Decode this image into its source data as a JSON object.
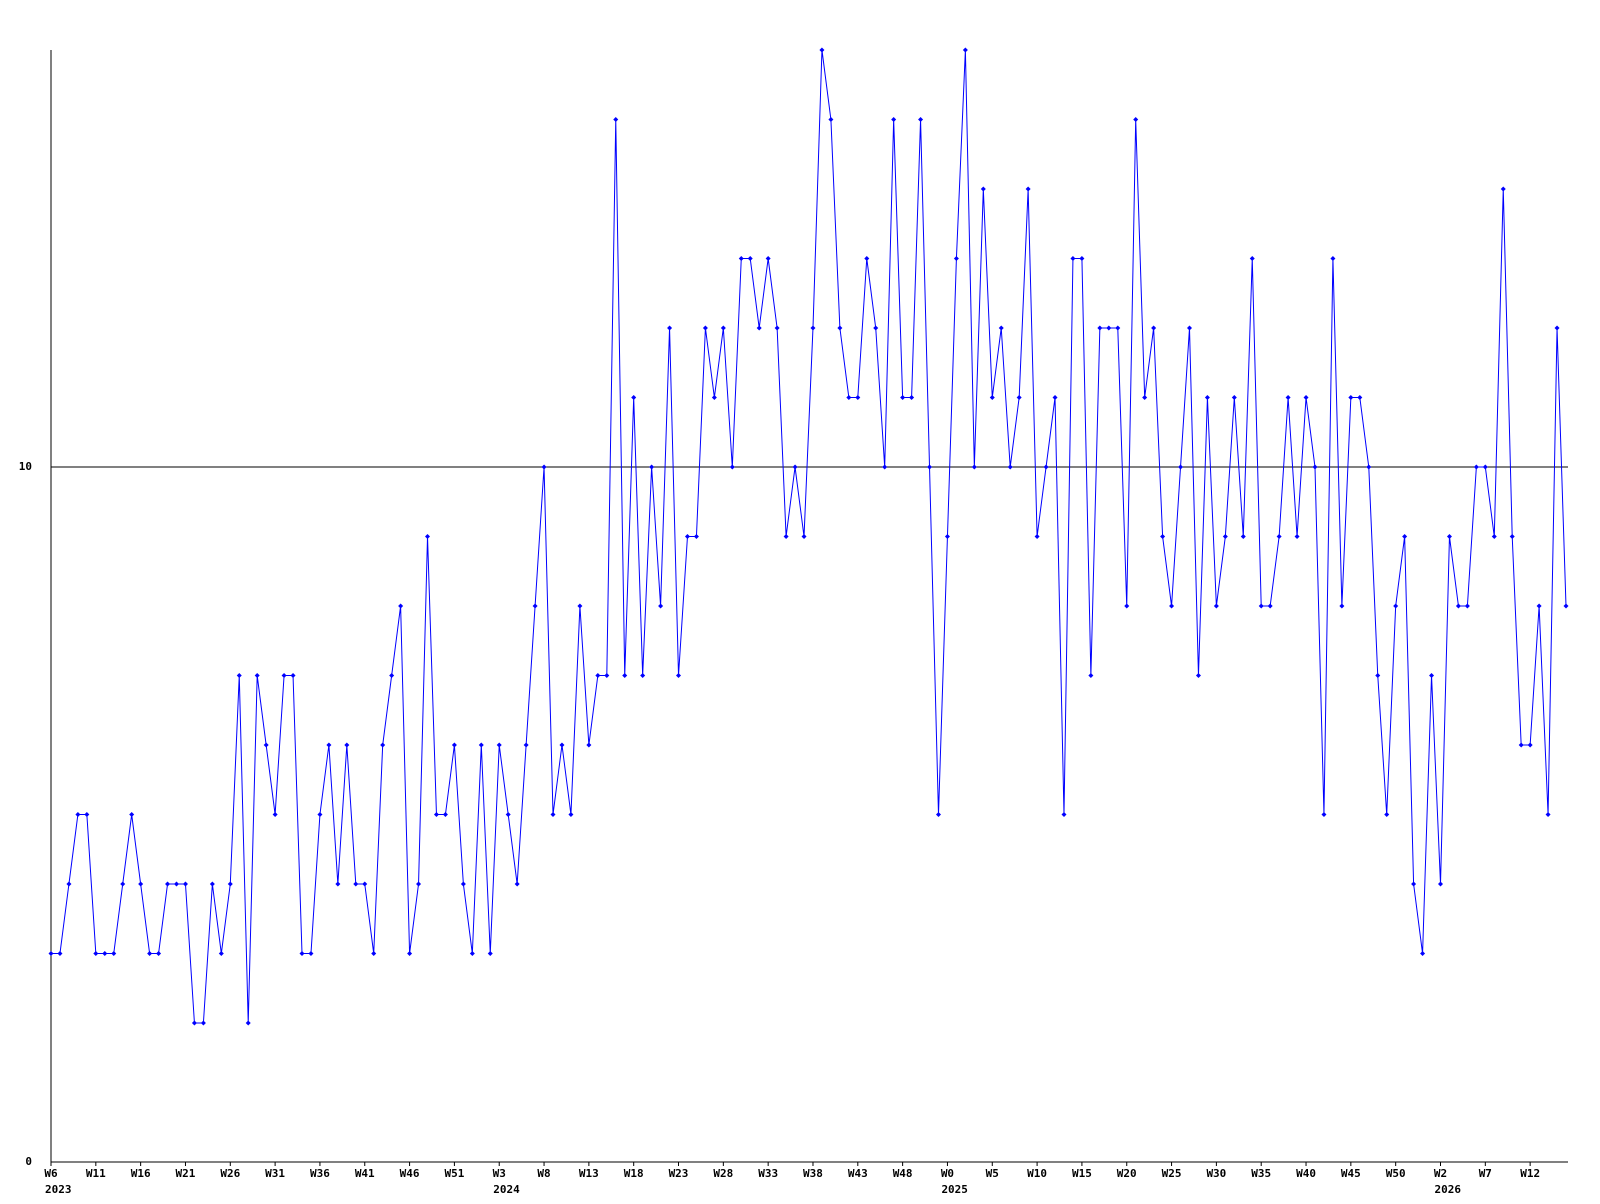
{
  "chart_data": {
    "type": "line",
    "color": "#0000ff",
    "ylim": [
      0,
      16
    ],
    "yticks": [
      0,
      10
    ],
    "grid": true,
    "categories": [
      "W6",
      null,
      null,
      null,
      null,
      "W11",
      null,
      null,
      null,
      null,
      "W16",
      null,
      null,
      null,
      null,
      "W21",
      null,
      null,
      null,
      null,
      "W26",
      null,
      null,
      null,
      null,
      "W31",
      null,
      null,
      null,
      null,
      "W36",
      null,
      null,
      null,
      null,
      "W41",
      null,
      null,
      null,
      null,
      "W46",
      null,
      null,
      null,
      null,
      "W51",
      null,
      null,
      null,
      null,
      "W3",
      null,
      null,
      null,
      null,
      "W8",
      null,
      null,
      null,
      null,
      "W13",
      null,
      null,
      null,
      null,
      "W18",
      null,
      null,
      null,
      null,
      "W23",
      null,
      null,
      null,
      null,
      "W28",
      null,
      null,
      null,
      null,
      "W33",
      null,
      null,
      null,
      null,
      "W38",
      null,
      null,
      null,
      null,
      "W43",
      null,
      null,
      null,
      null,
      "W48",
      null,
      null,
      null,
      null,
      "W0",
      null,
      null,
      null,
      null,
      "W5",
      null,
      null,
      null,
      null,
      "W10",
      null,
      null,
      null,
      null,
      "W15",
      null,
      null,
      null,
      null,
      "W20",
      null,
      null,
      null,
      null,
      "W25",
      null,
      null,
      null,
      null,
      "W30",
      null,
      null,
      null,
      null,
      "W35",
      null,
      null,
      null,
      null,
      "W40",
      null,
      null,
      null,
      null,
      "W45",
      null,
      null,
      null,
      null,
      "W50",
      null,
      null,
      null,
      null,
      "W2",
      null,
      null,
      null,
      null,
      "W7",
      null,
      null,
      null,
      null,
      "W12",
      null,
      null,
      null,
      null
    ],
    "years": [
      "2023",
      null,
      null,
      null,
      null,
      null,
      null,
      null,
      null,
      null,
      null,
      null,
      null,
      null,
      null,
      null,
      null,
      null,
      null,
      null,
      null,
      null,
      null,
      null,
      null,
      null,
      null,
      null,
      null,
      null,
      null,
      null,
      null,
      null,
      null,
      null,
      null,
      null,
      null,
      null,
      null,
      null,
      null,
      null,
      null,
      null,
      null,
      null,
      null,
      null,
      "2024",
      null,
      null,
      null,
      null,
      null,
      null,
      null,
      null,
      null,
      null,
      null,
      null,
      null,
      null,
      null,
      null,
      null,
      null,
      null,
      null,
      null,
      null,
      null,
      null,
      null,
      null,
      null,
      null,
      null,
      null,
      null,
      null,
      null,
      null,
      null,
      null,
      null,
      null,
      null,
      null,
      null,
      null,
      null,
      null,
      null,
      null,
      null,
      null,
      null,
      "2025",
      null,
      null,
      null,
      null,
      null,
      null,
      null,
      null,
      null,
      null,
      null,
      null,
      null,
      null,
      null,
      null,
      null,
      null,
      null,
      null,
      null,
      null,
      null,
      null,
      null,
      null,
      null,
      null,
      null,
      null,
      null,
      null,
      null,
      null,
      null,
      null,
      null,
      null,
      null,
      null,
      null,
      null,
      null,
      null,
      null,
      null,
      null,
      null,
      null,
      null,
      null,
      null,
      null,
      null,
      "2026",
      null,
      null,
      null,
      null,
      null,
      null,
      null,
      null,
      null,
      null,
      null,
      null,
      null,
      null
    ],
    "values": [
      3,
      3,
      4,
      5,
      5,
      3,
      3,
      3,
      4,
      5,
      4,
      3,
      3,
      4,
      4,
      4,
      2,
      2,
      4,
      3,
      4,
      7,
      2,
      7,
      6,
      5,
      7,
      7,
      3,
      3,
      5,
      6,
      4,
      6,
      4,
      4,
      3,
      6,
      7,
      8,
      3,
      4,
      9,
      5,
      5,
      6,
      4,
      3,
      6,
      3,
      6,
      5,
      4,
      6,
      8,
      10,
      5,
      6,
      5,
      8,
      6,
      7,
      7,
      15,
      7,
      11,
      7,
      10,
      8,
      12,
      7,
      9,
      9,
      12,
      11,
      12,
      10,
      13,
      13,
      12,
      13,
      12,
      9,
      10,
      9,
      12,
      16,
      15,
      12,
      11,
      11,
      13,
      12,
      10,
      15,
      11,
      11,
      15,
      10,
      5,
      9,
      13,
      16,
      10,
      14,
      11,
      12,
      10,
      11,
      14,
      9,
      10,
      11,
      5,
      13,
      13,
      7,
      12,
      12,
      12,
      8,
      15,
      11,
      12,
      9,
      8,
      10,
      12,
      7,
      11,
      8,
      9,
      11,
      9,
      13,
      8,
      8,
      9,
      11,
      9,
      11,
      10,
      5,
      13,
      8,
      11,
      11,
      10,
      7,
      5,
      8,
      9,
      4,
      3,
      7,
      4,
      9,
      8,
      8,
      10,
      10,
      9,
      14,
      9,
      6,
      6,
      8,
      5,
      12,
      8
    ]
  }
}
